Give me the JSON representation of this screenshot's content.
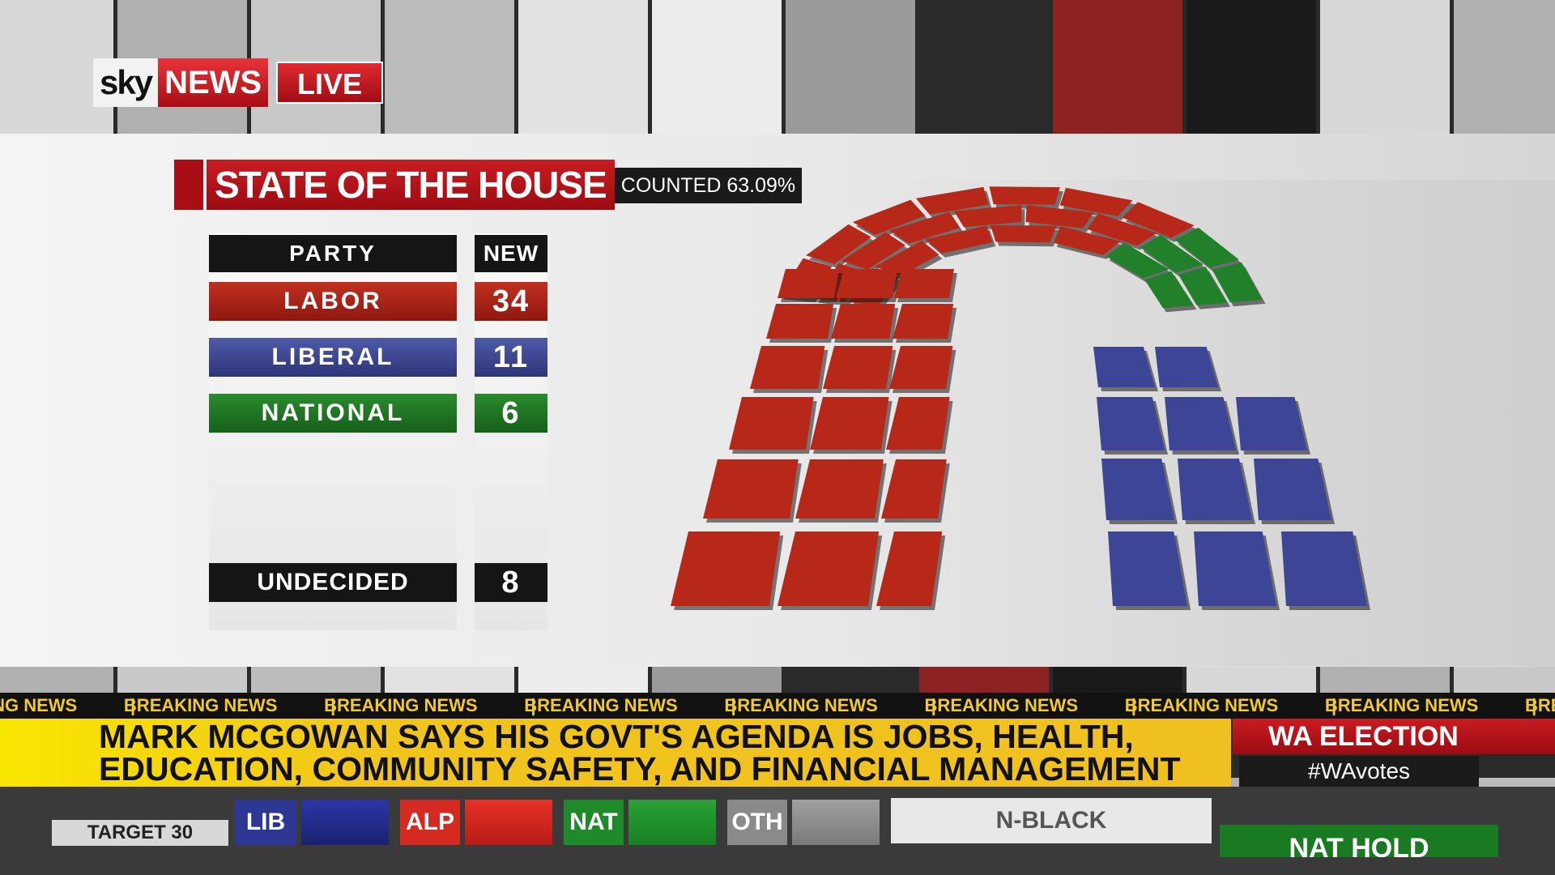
{
  "brand": {
    "logo_sky": "sky",
    "logo_news": "NEWS",
    "live": "LIVE"
  },
  "graphic": {
    "title": "STATE OF THE HOUSE",
    "counted": "COUNTED 63.09%",
    "header_party": "PARTY",
    "header_new": "NEW",
    "rows": [
      {
        "party": "LABOR",
        "seats": "34",
        "color": "#b82818"
      },
      {
        "party": "LIBERAL",
        "seats": "11",
        "color": "#3c4596"
      },
      {
        "party": "NATIONAL",
        "seats": "6",
        "color": "#21802a"
      }
    ],
    "undecided_label": "UNDECIDED",
    "undecided_seats": "8"
  },
  "ticker": {
    "breaking_label": "BREAKING NEWS",
    "headline_line1": "MARK MCGOWAN SAYS HIS GOVT'S AGENDA IS JOBS, HEALTH,",
    "headline_line2": "EDUCATION, COMMUNITY SAFETY, AND FINANCIAL MANAGEMENT",
    "program": "WA ELECTION",
    "hashtag": "#WAvotes"
  },
  "bottom_bar": {
    "target": "TARGET 30",
    "parties": [
      {
        "label": "LIB",
        "color": "#2c3894"
      },
      {
        "label": "ALP",
        "color": "#d42a22"
      },
      {
        "label": "NAT",
        "color": "#1f8a2a"
      },
      {
        "label": "OTH",
        "color": "#8a8a8a"
      }
    ],
    "candidate": "N-BLACK",
    "result": "NAT HOLD"
  }
}
